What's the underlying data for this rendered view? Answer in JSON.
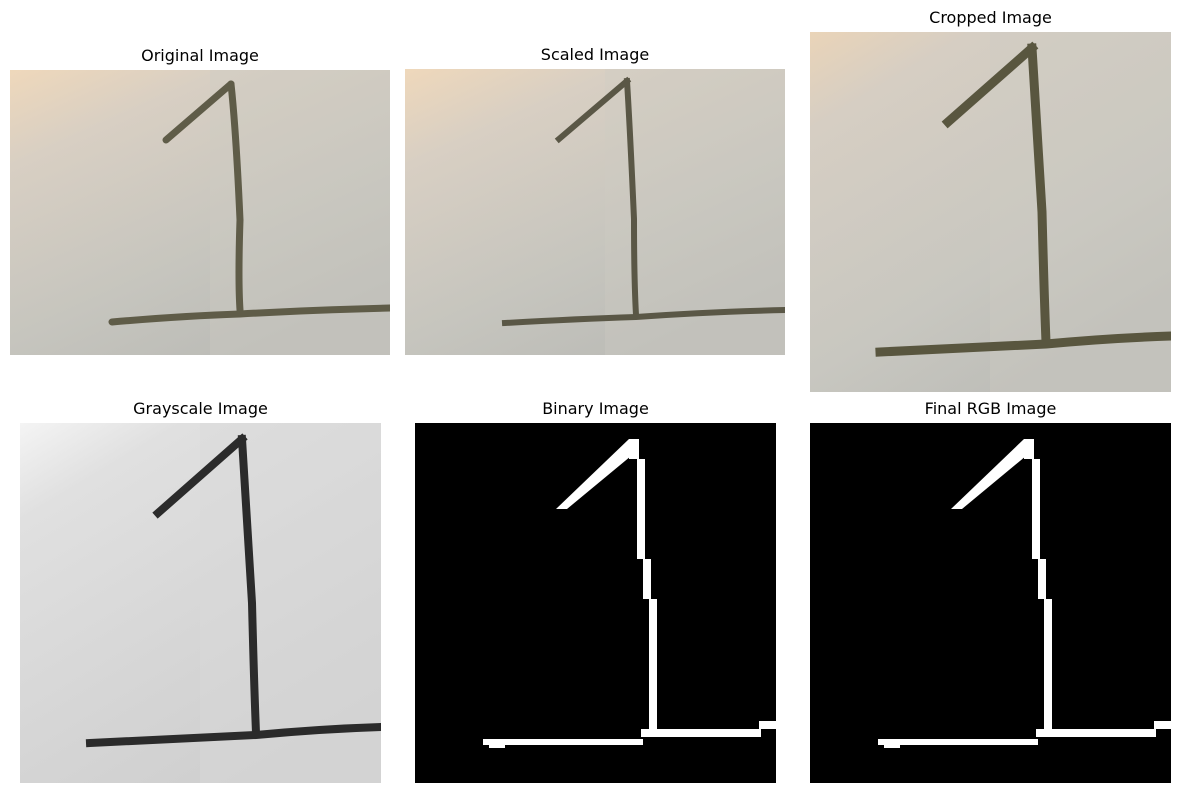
{
  "figure": {
    "panels": [
      {
        "key": "original",
        "title": "Original Image"
      },
      {
        "key": "scaled",
        "title": "Scaled Image"
      },
      {
        "key": "cropped",
        "title": "Cropped Image"
      },
      {
        "key": "grayscale",
        "title": "Grayscale Image"
      },
      {
        "key": "binary",
        "title": "Binary Image"
      },
      {
        "key": "final",
        "title": "Final RGB Image"
      }
    ]
  },
  "colors": {
    "paper_light": "#f0e3d1",
    "paper_mid": "#c9c6bf",
    "paper_cool": "#b9b9b3",
    "ink": "#5e5b48",
    "gray_bg_light": "#f2f2f2",
    "gray_bg_mid": "#d6d6d6",
    "gray_ink": "#2a2a2a",
    "binary_bg": "#000000",
    "binary_fg": "#ffffff"
  }
}
